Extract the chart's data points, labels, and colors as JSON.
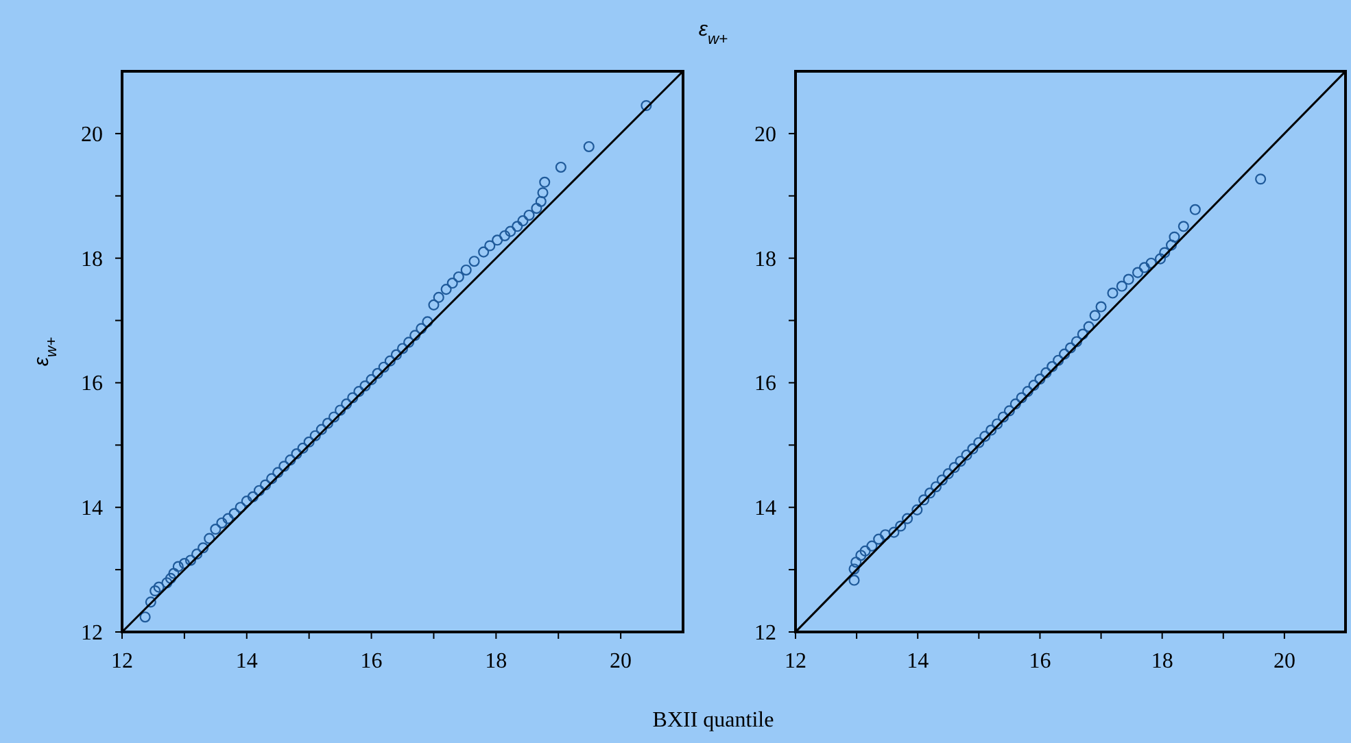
{
  "chart_data": [
    {
      "type": "scatter",
      "ylabel": "ε$_{w+}$",
      "xlabel": "BXII quantile",
      "xlim": [
        12,
        21
      ],
      "ylim": [
        12,
        21
      ],
      "xticks": [
        12,
        {
          "value": 13,
          "label": null
        },
        14,
        {
          "value": 15,
          "label": null
        },
        16,
        {
          "value": 17,
          "label": null
        },
        18,
        {
          "value": 19,
          "label": null
        },
        20
      ],
      "yticks": [
        12,
        {
          "value": 13,
          "label": null
        },
        14,
        {
          "value": 15,
          "label": null
        },
        16,
        {
          "value": 17,
          "label": null
        },
        18,
        {
          "value": 19,
          "label": null
        },
        20
      ],
      "series": [
        {
          "type": "scatter",
          "marker": "circle",
          "color": "#1f5a9a",
          "x": [
            12.37,
            12.46,
            12.53,
            12.59,
            12.72,
            12.78,
            12.83,
            12.9,
            13.0,
            13.1,
            13.2,
            13.3,
            13.4,
            13.5,
            13.6,
            13.7,
            13.8,
            13.9,
            14.0,
            14.1,
            14.2,
            14.3,
            14.4,
            14.5,
            14.6,
            14.7,
            14.8,
            14.9,
            15.0,
            15.1,
            15.2,
            15.3,
            15.4,
            15.5,
            15.6,
            15.7,
            15.8,
            15.9,
            16.0,
            16.1,
            16.2,
            16.3,
            16.4,
            16.5,
            16.6,
            16.7,
            16.8,
            16.9,
            17.0,
            17.08,
            17.2,
            17.3,
            17.4,
            17.52,
            17.65,
            17.8,
            17.9,
            18.02,
            18.14,
            18.23,
            18.34,
            18.43,
            18.53,
            18.65,
            18.72,
            18.75,
            18.78,
            19.04,
            19.49,
            20.41
          ],
          "values": [
            12.24,
            12.48,
            12.66,
            12.72,
            12.79,
            12.86,
            12.94,
            13.05,
            13.1,
            13.15,
            13.25,
            13.35,
            13.5,
            13.65,
            13.75,
            13.82,
            13.9,
            14.0,
            14.1,
            14.17,
            14.27,
            14.36,
            14.46,
            14.56,
            14.66,
            14.76,
            14.86,
            14.95,
            15.05,
            15.15,
            15.25,
            15.35,
            15.45,
            15.56,
            15.66,
            15.76,
            15.86,
            15.95,
            16.05,
            16.15,
            16.25,
            16.35,
            16.45,
            16.55,
            16.65,
            16.76,
            16.87,
            16.98,
            17.25,
            17.37,
            17.5,
            17.6,
            17.7,
            17.81,
            17.95,
            18.1,
            18.2,
            18.29,
            18.36,
            18.43,
            18.51,
            18.6,
            18.69,
            18.8,
            18.91,
            19.05,
            19.22,
            19.46,
            19.79,
            20.45
          ]
        },
        {
          "type": "line",
          "marker": "none",
          "color": "#000000",
          "x": [
            12,
            21
          ],
          "values": [
            12,
            21
          ]
        }
      ]
    },
    {
      "type": "scatter",
      "title": "ε$_{w+}$",
      "xlim": [
        12,
        21
      ],
      "ylim": [
        12,
        21
      ],
      "xticks": [
        12,
        {
          "value": 13,
          "label": null
        },
        14,
        {
          "value": 15,
          "label": null
        },
        16,
        {
          "value": 17,
          "label": null
        },
        18,
        {
          "value": 19,
          "label": null
        },
        20
      ],
      "yticks": [
        12,
        {
          "value": 13,
          "label": null
        },
        14,
        {
          "value": 15,
          "label": null
        },
        16,
        {
          "value": 17,
          "label": null
        },
        18,
        {
          "value": 19,
          "label": null
        },
        20
      ],
      "series": [
        {
          "type": "scatter",
          "marker": "circle",
          "color": "#1f5a9a",
          "x": [
            12.96,
            12.96,
            12.99,
            13.07,
            13.14,
            13.25,
            13.36,
            13.47,
            13.61,
            13.72,
            13.83,
            13.99,
            14.1,
            14.2,
            14.3,
            14.4,
            14.5,
            14.6,
            14.7,
            14.8,
            14.9,
            15.0,
            15.1,
            15.2,
            15.3,
            15.4,
            15.5,
            15.6,
            15.7,
            15.8,
            15.9,
            16.0,
            16.1,
            16.2,
            16.3,
            16.4,
            16.5,
            16.6,
            16.7,
            16.8,
            16.9,
            17.0,
            17.19,
            17.34,
            17.45,
            17.6,
            17.71,
            17.82,
            17.97,
            18.04,
            18.15,
            18.2,
            18.35,
            18.54,
            19.61
          ],
          "values": [
            12.83,
            13.01,
            13.12,
            13.23,
            13.3,
            13.38,
            13.49,
            13.56,
            13.6,
            13.7,
            13.82,
            13.96,
            14.12,
            14.23,
            14.33,
            14.44,
            14.54,
            14.64,
            14.74,
            14.84,
            14.94,
            15.04,
            15.14,
            15.24,
            15.34,
            15.45,
            15.55,
            15.66,
            15.76,
            15.86,
            15.96,
            16.06,
            16.16,
            16.26,
            16.36,
            16.46,
            16.56,
            16.66,
            16.78,
            16.9,
            17.08,
            17.22,
            17.44,
            17.55,
            17.66,
            17.77,
            17.85,
            17.92,
            17.99,
            18.09,
            18.21,
            18.34,
            18.51,
            18.78,
            19.27
          ]
        },
        {
          "type": "line",
          "marker": "none",
          "color": "#000000",
          "x": [
            12,
            21
          ],
          "values": [
            12,
            21
          ]
        }
      ]
    }
  ]
}
